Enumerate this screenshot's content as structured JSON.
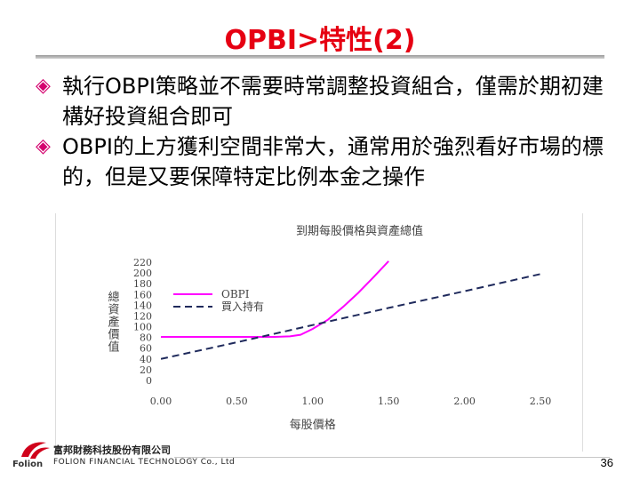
{
  "slide": {
    "title": "OPBI>特性(2)",
    "bullets": [
      {
        "marker": "◈",
        "text": "執行OBPI策略並不需要時常調整投資組合，僅需於期初建構好投資組合即可"
      },
      {
        "marker": "◈",
        "text": "OBPI的上方獲利空間非常大，通常用於強烈看好市場的標的，但是又要保障特定比例本金之操作"
      }
    ],
    "page_number": "36"
  },
  "footer": {
    "company_cn": "富邦財務科技股份有限公司",
    "company_en": "FOLION FINANCIAL TECHNOLOGY Co., Ltd",
    "brand": "Folion"
  },
  "chart_data": {
    "type": "line",
    "title": "到期每股價格與資產總值",
    "xlabel": "每股價格",
    "ylabel": "總資產價值",
    "xlim": [
      0,
      2.5
    ],
    "ylim": [
      0,
      220
    ],
    "xticks": [
      "0.00",
      "0.50",
      "1.00",
      "1.50",
      "2.00",
      "2.50"
    ],
    "yticks": [
      "0",
      "20",
      "40",
      "60",
      "80",
      "100",
      "120",
      "140",
      "160",
      "180",
      "200",
      "220"
    ],
    "legend_position": "upper-left",
    "colors": {
      "obpi": "#ff00ff",
      "buyhold": "#1f2a5c"
    },
    "series": [
      {
        "name": "OBPI",
        "style": "solid",
        "x": [
          0,
          0.2,
          0.4,
          0.6,
          0.75,
          0.85,
          0.92,
          1.0,
          1.1,
          1.2,
          1.3,
          1.4,
          1.5
        ],
        "y": [
          81,
          81,
          81,
          81,
          81,
          82,
          85,
          96,
          113,
          137,
          163,
          192,
          222
        ]
      },
      {
        "name": "買入持有",
        "style": "dashed",
        "x": [
          0,
          0.5,
          1.0,
          1.5,
          2.0,
          2.5
        ],
        "y": [
          40,
          71,
          103,
          135,
          166,
          198
        ]
      }
    ]
  }
}
